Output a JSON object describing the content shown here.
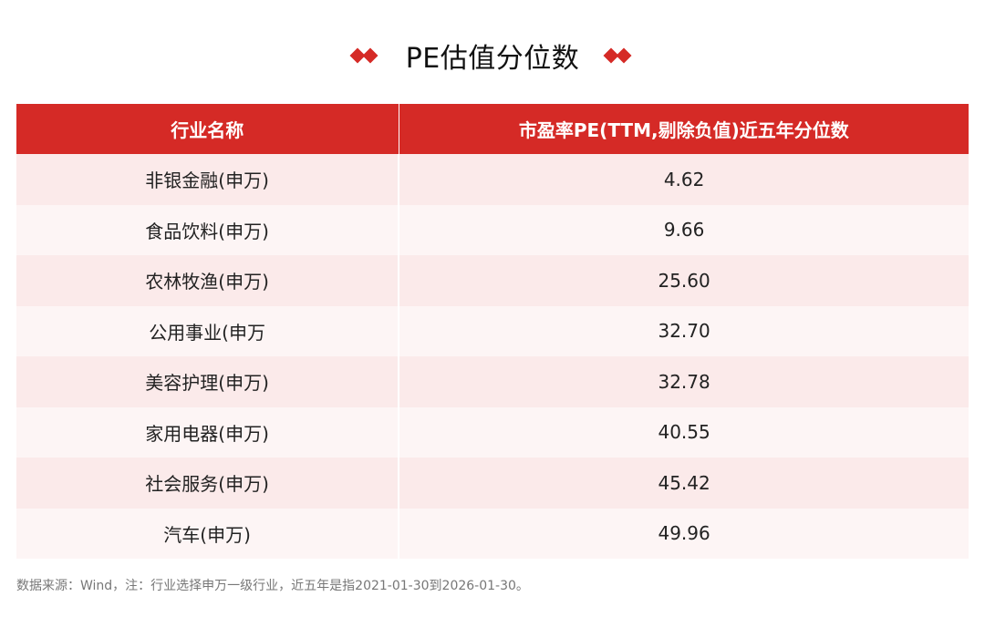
{
  "title": "PE估值分位数",
  "icons": {
    "left": "double-diamond-icon",
    "right": "double-diamond-icon"
  },
  "colors": {
    "accent": "#d52a26",
    "row_odd": "#fbeaea",
    "row_even": "#fdf5f5"
  },
  "table": {
    "headers": [
      "行业名称",
      "市盈率PE(TTM,剔除负值)近五年分位数"
    ],
    "rows": [
      {
        "industry": "非银金融(申万)",
        "value": "4.62"
      },
      {
        "industry": "食品饮料(申万)",
        "value": "9.66"
      },
      {
        "industry": "农林牧渔(申万)",
        "value": "25.60"
      },
      {
        "industry": "公用事业(申万",
        "value": "32.70"
      },
      {
        "industry": "美容护理(申万)",
        "value": "32.78"
      },
      {
        "industry": "家用电器(申万)",
        "value": "40.55"
      },
      {
        "industry": "社会服务(申万)",
        "value": "45.42"
      },
      {
        "industry": "汽车(申万)",
        "value": "49.96"
      }
    ]
  },
  "footnote": "数据来源：Wind，注：行业选择申万一级行业，近五年是指2021-01-30到2026-01-30。"
}
